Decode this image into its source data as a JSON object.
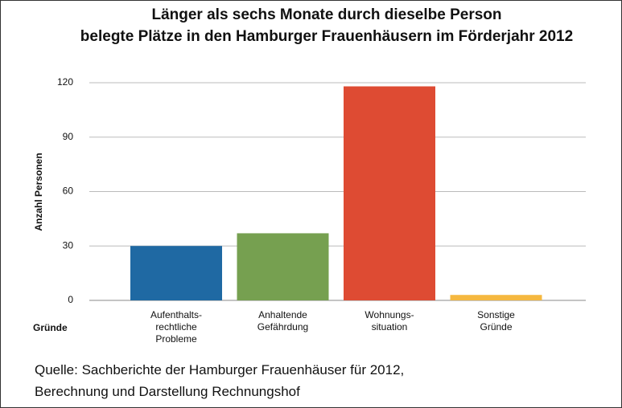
{
  "chart_data": {
    "type": "bar",
    "title": [
      "Länger als sechs Monate durch dieselbe Person",
      "belegte Plätze in den Hamburger Frauenhäusern im Förderjahr 2012"
    ],
    "y_label": "Anzahl Personen",
    "x_label": "Gründe",
    "categories": [
      "Aufenthalts-\nrechtliche\nProbleme",
      "Anhaltende\nGefährdung",
      "Wohnungs-\nsituation",
      "Sonstige\nGründe"
    ],
    "values": [
      30,
      37,
      118,
      3
    ],
    "colors": [
      "#1f69a3",
      "#76a050",
      "#de4b33",
      "#f5b840"
    ],
    "ylim": [
      0,
      120
    ],
    "yticks": [
      0,
      30,
      60,
      90,
      120
    ],
    "grid": true,
    "source": [
      "Quelle: Sachberichte der Hamburger Frauenhäuser für 2012,",
      "Berechnung und Darstellung Rechnungshof"
    ]
  }
}
